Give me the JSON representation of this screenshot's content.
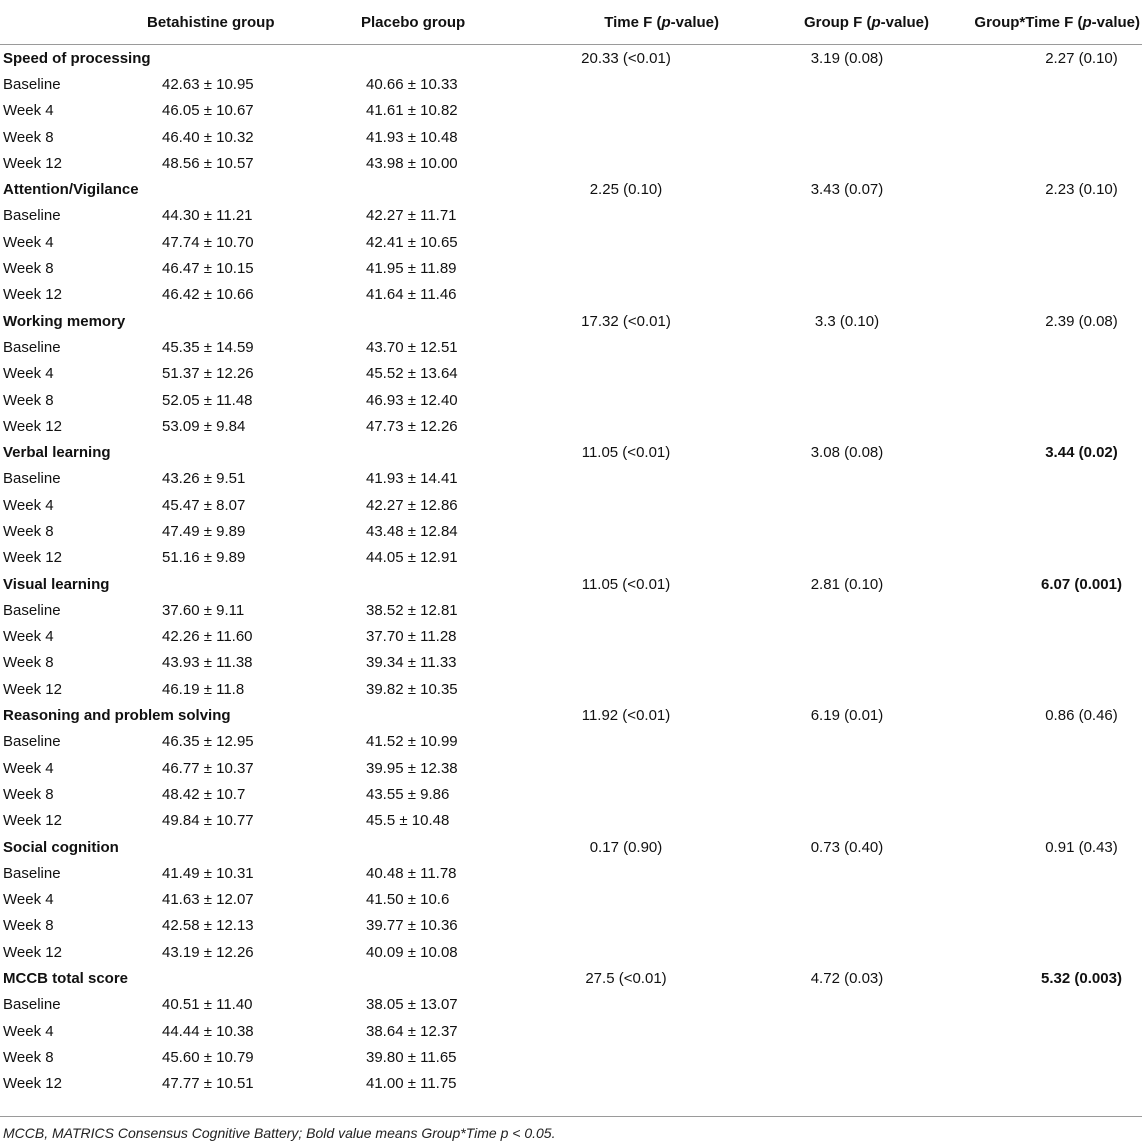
{
  "header": {
    "col1": "Betahistine group",
    "col2": "Placebo group",
    "col3_pre": "Time F (",
    "col3_p": "p",
    "col3_post": "-value)",
    "col4_pre": "Group F (",
    "col4_p": "p",
    "col4_post": "-value)",
    "col5_pre": "Group*Time F (",
    "col5_p": "p",
    "col5_post": "-value)"
  },
  "sections": [
    {
      "title": "Speed of processing",
      "time": "20.33 (<0.01)",
      "group": "3.19 (0.08)",
      "interaction": "2.27 (0.10)",
      "interaction_bold": false,
      "rows": [
        {
          "label": "Baseline",
          "betahistine": "42.63 ± 10.95",
          "placebo": "40.66 ± 10.33"
        },
        {
          "label": "Week 4",
          "betahistine": "46.05 ± 10.67",
          "placebo": "41.61 ± 10.82"
        },
        {
          "label": "Week 8",
          "betahistine": "46.40 ± 10.32",
          "placebo": "41.93 ± 10.48"
        },
        {
          "label": "Week 12",
          "betahistine": "48.56 ± 10.57",
          "placebo": "43.98 ± 10.00"
        }
      ]
    },
    {
      "title": "Attention/Vigilance",
      "time": "2.25 (0.10)",
      "group": "3.43 (0.07)",
      "interaction": "2.23 (0.10)",
      "interaction_bold": false,
      "rows": [
        {
          "label": "Baseline",
          "betahistine": "44.30 ± 11.21",
          "placebo": "42.27 ± 11.71"
        },
        {
          "label": "Week 4",
          "betahistine": "47.74 ± 10.70",
          "placebo": "42.41 ± 10.65"
        },
        {
          "label": "Week 8",
          "betahistine": "46.47 ± 10.15",
          "placebo": "41.95 ± 11.89"
        },
        {
          "label": "Week 12",
          "betahistine": "46.42 ± 10.66",
          "placebo": "41.64 ± 11.46"
        }
      ]
    },
    {
      "title": "Working memory",
      "time": "17.32 (<0.01)",
      "group": "3.3 (0.10)",
      "interaction": "2.39 (0.08)",
      "interaction_bold": false,
      "rows": [
        {
          "label": "Baseline",
          "betahistine": "45.35 ± 14.59",
          "placebo": "43.70 ± 12.51"
        },
        {
          "label": "Week 4",
          "betahistine": "51.37 ± 12.26",
          "placebo": "45.52 ± 13.64"
        },
        {
          "label": "Week 8",
          "betahistine": "52.05 ± 11.48",
          "placebo": "46.93 ± 12.40"
        },
        {
          "label": "Week 12",
          "betahistine": "53.09 ± 9.84",
          "placebo": "47.73 ± 12.26"
        }
      ]
    },
    {
      "title": "Verbal learning",
      "time": "11.05 (<0.01)",
      "group": "3.08 (0.08)",
      "interaction": "3.44 (0.02)",
      "interaction_bold": true,
      "rows": [
        {
          "label": "Baseline",
          "betahistine": "43.26 ± 9.51",
          "placebo": "41.93 ± 14.41"
        },
        {
          "label": "Week 4",
          "betahistine": "45.47 ± 8.07",
          "placebo": "42.27 ± 12.86"
        },
        {
          "label": "Week 8",
          "betahistine": "47.49 ± 9.89",
          "placebo": "43.48 ± 12.84"
        },
        {
          "label": "Week 12",
          "betahistine": "51.16 ± 9.89",
          "placebo": "44.05 ± 12.91"
        }
      ]
    },
    {
      "title": "Visual learning",
      "time": "11.05 (<0.01)",
      "group": "2.81 (0.10)",
      "interaction": "6.07 (0.001)",
      "interaction_bold": true,
      "rows": [
        {
          "label": "Baseline",
          "betahistine": "37.60 ± 9.11",
          "placebo": "38.52 ± 12.81"
        },
        {
          "label": "Week 4",
          "betahistine": "42.26 ± 11.60",
          "placebo": "37.70 ± 11.28"
        },
        {
          "label": "Week 8",
          "betahistine": "43.93 ± 11.38",
          "placebo": "39.34 ± 11.33"
        },
        {
          "label": "Week 12",
          "betahistine": "46.19 ± 11.8",
          "placebo": "39.82 ± 10.35"
        }
      ]
    },
    {
      "title": "Reasoning and problem solving",
      "time": "11.92 (<0.01)",
      "group": "6.19 (0.01)",
      "interaction": "0.86 (0.46)",
      "interaction_bold": false,
      "rows": [
        {
          "label": "Baseline",
          "betahistine": "46.35 ± 12.95",
          "placebo": "41.52 ± 10.99"
        },
        {
          "label": "Week 4",
          "betahistine": "46.77 ± 10.37",
          "placebo": "39.95 ± 12.38"
        },
        {
          "label": "Week 8",
          "betahistine": "48.42 ± 10.7",
          "placebo": "43.55 ± 9.86"
        },
        {
          "label": "Week 12",
          "betahistine": "49.84 ± 10.77",
          "placebo": "45.5 ± 10.48"
        }
      ]
    },
    {
      "title": "Social cognition",
      "time": "0.17 (0.90)",
      "group": "0.73 (0.40)",
      "interaction": "0.91 (0.43)",
      "interaction_bold": false,
      "rows": [
        {
          "label": "Baseline",
          "betahistine": "41.49 ± 10.31",
          "placebo": "40.48 ± 11.78"
        },
        {
          "label": "Week 4",
          "betahistine": "41.63 ± 12.07",
          "placebo": "41.50 ± 10.6"
        },
        {
          "label": "Week 8",
          "betahistine": "42.58 ± 12.13",
          "placebo": "39.77 ± 10.36"
        },
        {
          "label": "Week 12",
          "betahistine": "43.19 ± 12.26",
          "placebo": "40.09 ± 10.08"
        }
      ]
    },
    {
      "title": "MCCB total score",
      "time": "27.5 (<0.01)",
      "group": "4.72 (0.03)",
      "interaction": "5.32 (0.003)",
      "interaction_bold": true,
      "rows": [
        {
          "label": "Baseline",
          "betahistine": "40.51 ± 11.40",
          "placebo": "38.05 ± 13.07"
        },
        {
          "label": "Week 4",
          "betahistine": "44.44 ± 10.38",
          "placebo": "38.64 ± 12.37"
        },
        {
          "label": "Week 8",
          "betahistine": "45.60 ± 10.79",
          "placebo": "39.80 ± 11.65"
        },
        {
          "label": "Week 12",
          "betahistine": "47.77 ± 10.51",
          "placebo": "41.00 ± 11.75"
        }
      ]
    }
  ],
  "footnote": "MCCB, MATRICS Consensus Cognitive Battery; Bold value means Group*Time p < 0.05."
}
